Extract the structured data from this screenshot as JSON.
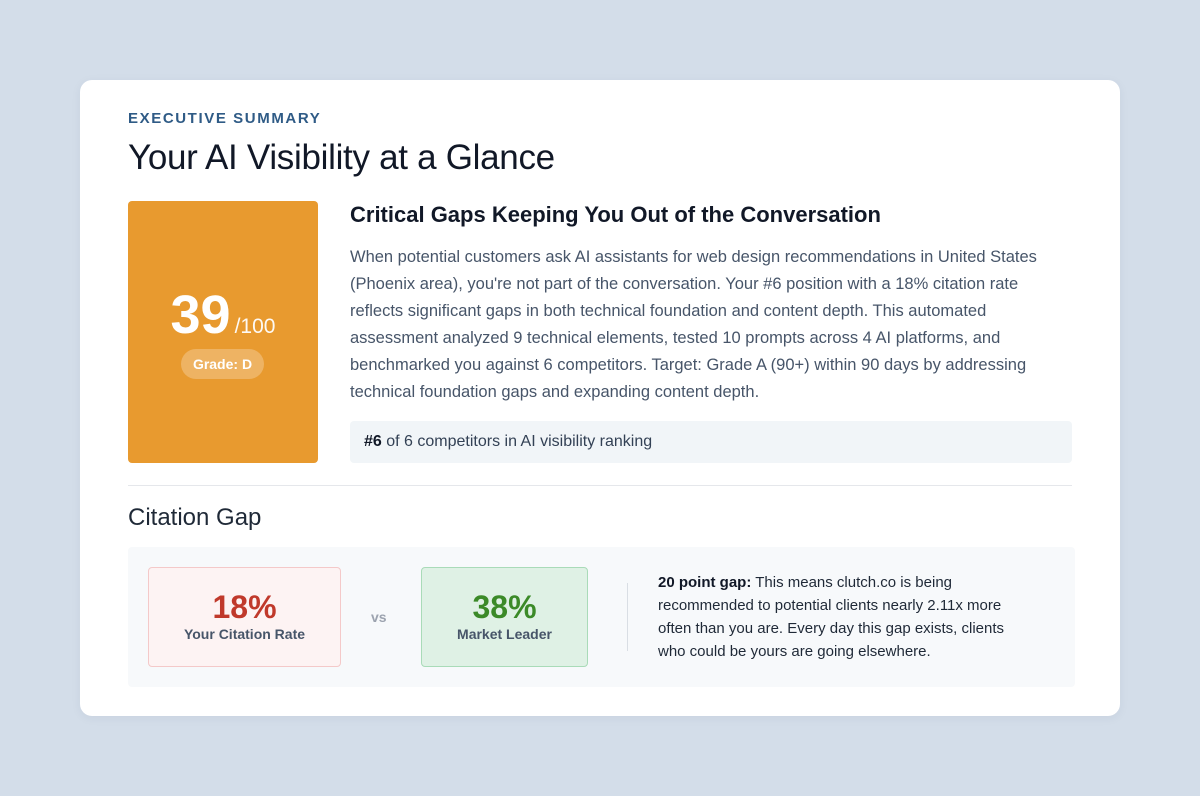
{
  "header": {
    "eyebrow": "EXECUTIVE SUMMARY",
    "title": "Your AI Visibility at a Glance"
  },
  "score": {
    "value": "39",
    "max": "/100",
    "grade": "Grade: D",
    "color": "#e89a2f"
  },
  "gaps": {
    "title": "Critical Gaps Keeping You Out of the Conversation",
    "body": "When potential customers ask AI assistants for web design recommendations in United States (Phoenix area), you're not part of the conversation. Your #6 position with a 18% citation rate reflects significant gaps in both technical foundation and content depth. This automated assessment analyzed 9 technical elements, tested 10 prompts across 4 AI platforms, and benchmarked you against 6 competitors. Target: Grade A (90+) within 90 days by addressing technical foundation gaps and expanding content depth.",
    "rank_strong": "#6",
    "rank_text": " of 6 competitors in AI visibility ranking"
  },
  "citation_gap": {
    "title": "Citation Gap",
    "your_rate": "18%",
    "your_label": "Your Citation Rate",
    "vs": "vs",
    "leader_rate": "38%",
    "leader_label": "Market Leader",
    "gap_strong": "20 point gap:",
    "gap_text": " This means clutch.co is being recommended to potential clients nearly 2.11x more often than you are. Every day this gap exists, clients who could be yours are going elsewhere.",
    "colors": {
      "negative": "#c0392b",
      "positive": "#3b8a28"
    }
  }
}
